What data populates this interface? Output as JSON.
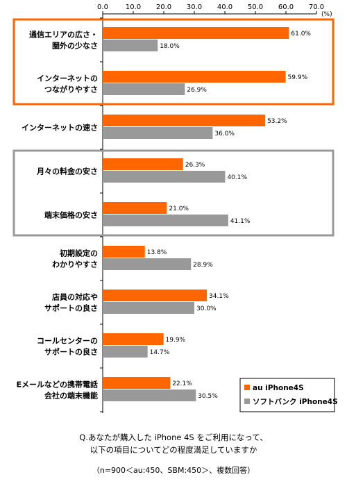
{
  "chart_data": {
    "type": "bar",
    "orientation": "horizontal",
    "unit_label": "(%)",
    "xlim": [
      0,
      70
    ],
    "ticks": [
      "0.0",
      "10.0",
      "20.0",
      "30.0",
      "40.0",
      "50.0",
      "60.0",
      "70.0"
    ],
    "categories": [
      [
        "通信エリアの広さ・",
        "圏外の少なさ"
      ],
      [
        "インターネットの",
        "つながりやすさ"
      ],
      [
        "インターネットの速さ"
      ],
      [
        "月々の料金の安さ"
      ],
      [
        "端末価格の安さ"
      ],
      [
        "初期設定の",
        "わかりやすさ"
      ],
      [
        "店員の対応や",
        "サポートの良さ"
      ],
      [
        "コールセンターの",
        "サポートの良さ"
      ],
      [
        "Eメールなどの携帯電話",
        "会社の端末機能"
      ]
    ],
    "series": [
      {
        "name": "au iPhone4S",
        "color": "#ff6600",
        "values": [
          61.0,
          59.9,
          53.2,
          26.3,
          21.0,
          13.8,
          34.1,
          19.9,
          22.1
        ],
        "labels": [
          "61.0%",
          "59.9%",
          "53.2%",
          "26.3%",
          "21.0%",
          "13.8%",
          "34.1%",
          "19.9%",
          "22.1%"
        ]
      },
      {
        "name": "ソフトバンク iPhone4S",
        "color": "#999999",
        "values": [
          18.0,
          26.9,
          36.0,
          40.1,
          41.1,
          28.9,
          30.0,
          14.7,
          30.5
        ],
        "labels": [
          "18.0%",
          "26.9%",
          "36.0%",
          "40.1%",
          "41.1%",
          "28.9%",
          "30.0%",
          "14.7%",
          "30.5%"
        ]
      }
    ],
    "legend": "bottom-right",
    "highlight_groups": [
      {
        "color": "#ff6600",
        "categories": [
          0,
          1
        ]
      },
      {
        "color": "#999999",
        "categories": [
          3,
          4
        ]
      }
    ]
  },
  "caption": {
    "line1": "Q.あなたが購入した iPhone 4S をご利用になって、",
    "line2": "以下の項目についてどの程度満足していますか",
    "line3": "（n=900＜au:450、SBM:450＞、複数回答）"
  }
}
